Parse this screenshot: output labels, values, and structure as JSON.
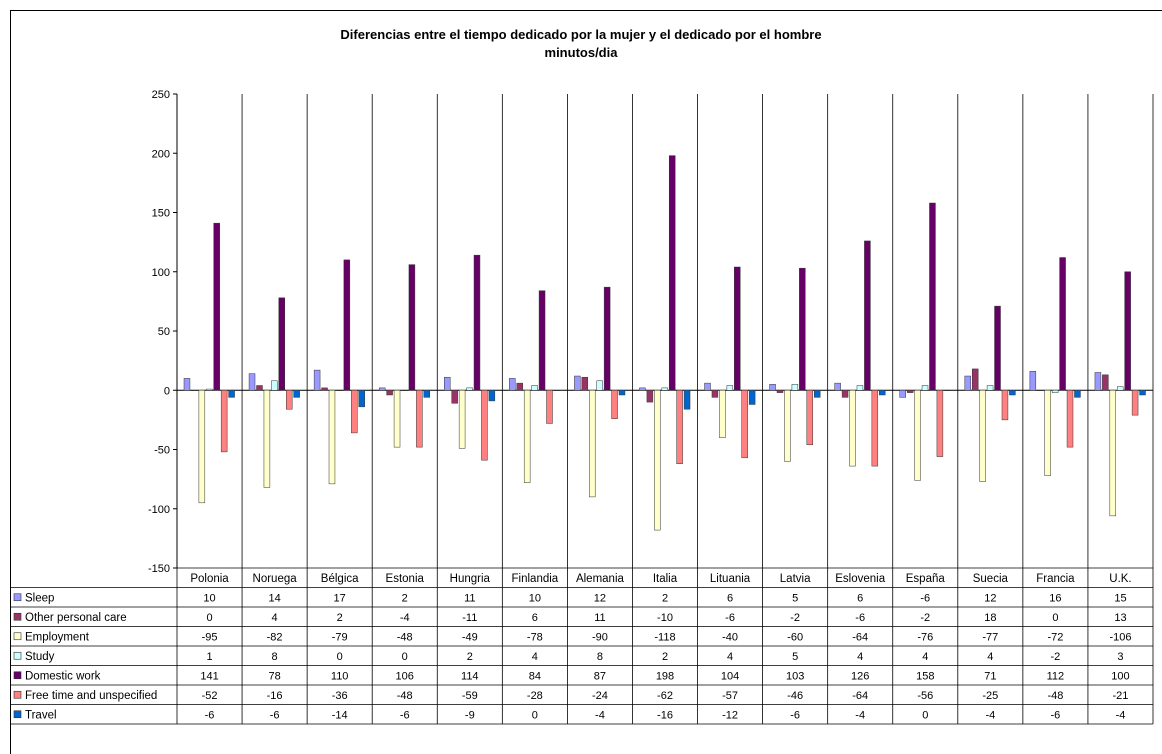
{
  "chart_data": {
    "type": "bar",
    "title": "Diferencias entre el tiempo dedicado por la mujer y el dedicado por el hombre",
    "subtitle": "minutos/dia",
    "xlabel": "",
    "ylabel": "",
    "ylim": [
      -150,
      250
    ],
    "yticks": [
      250,
      200,
      150,
      100,
      50,
      0,
      -50,
      -100,
      -150
    ],
    "grid": "vertical category separators",
    "legend": "data-table",
    "categories": [
      "Polonia",
      "Noruega",
      "Bélgica",
      "Estonia",
      "Hungria",
      "Finlandia",
      "Alemania",
      "Italia",
      "Lituania",
      "Latvia",
      "Eslovenia",
      "España",
      "Suecia",
      "Francia",
      "U.K."
    ],
    "series": [
      {
        "name": "Sleep",
        "color": "#9999ff",
        "values": [
          10,
          14,
          17,
          2,
          11,
          10,
          12,
          2,
          6,
          5,
          6,
          -6,
          12,
          16,
          15
        ]
      },
      {
        "name": "Other personal care",
        "color": "#993366",
        "values": [
          0,
          4,
          2,
          -4,
          -11,
          6,
          11,
          -10,
          -6,
          -2,
          -6,
          -2,
          18,
          0,
          13
        ]
      },
      {
        "name": "Employment",
        "color": "#ffffcc",
        "values": [
          -95,
          -82,
          -79,
          -48,
          -49,
          -78,
          -90,
          -118,
          -40,
          -60,
          -64,
          -76,
          -77,
          -72,
          -106
        ]
      },
      {
        "name": "Study",
        "color": "#ccffff",
        "values": [
          1,
          8,
          0,
          0,
          2,
          4,
          8,
          2,
          4,
          5,
          4,
          4,
          4,
          -2,
          3
        ]
      },
      {
        "name": "Domestic work",
        "color": "#660066",
        "values": [
          141,
          78,
          110,
          106,
          114,
          84,
          87,
          198,
          104,
          103,
          126,
          158,
          71,
          112,
          100
        ]
      },
      {
        "name": "Free time and unspecified",
        "color": "#ff8080",
        "values": [
          -52,
          -16,
          -36,
          -48,
          -59,
          -28,
          -24,
          -62,
          -57,
          -46,
          -64,
          -56,
          -25,
          -48,
          -21
        ]
      },
      {
        "name": "Travel",
        "color": "#0066cc",
        "values": [
          -6,
          -6,
          -14,
          -6,
          -9,
          0,
          -4,
          -16,
          -12,
          -6,
          -4,
          0,
          -4,
          -6,
          -4
        ]
      }
    ]
  }
}
